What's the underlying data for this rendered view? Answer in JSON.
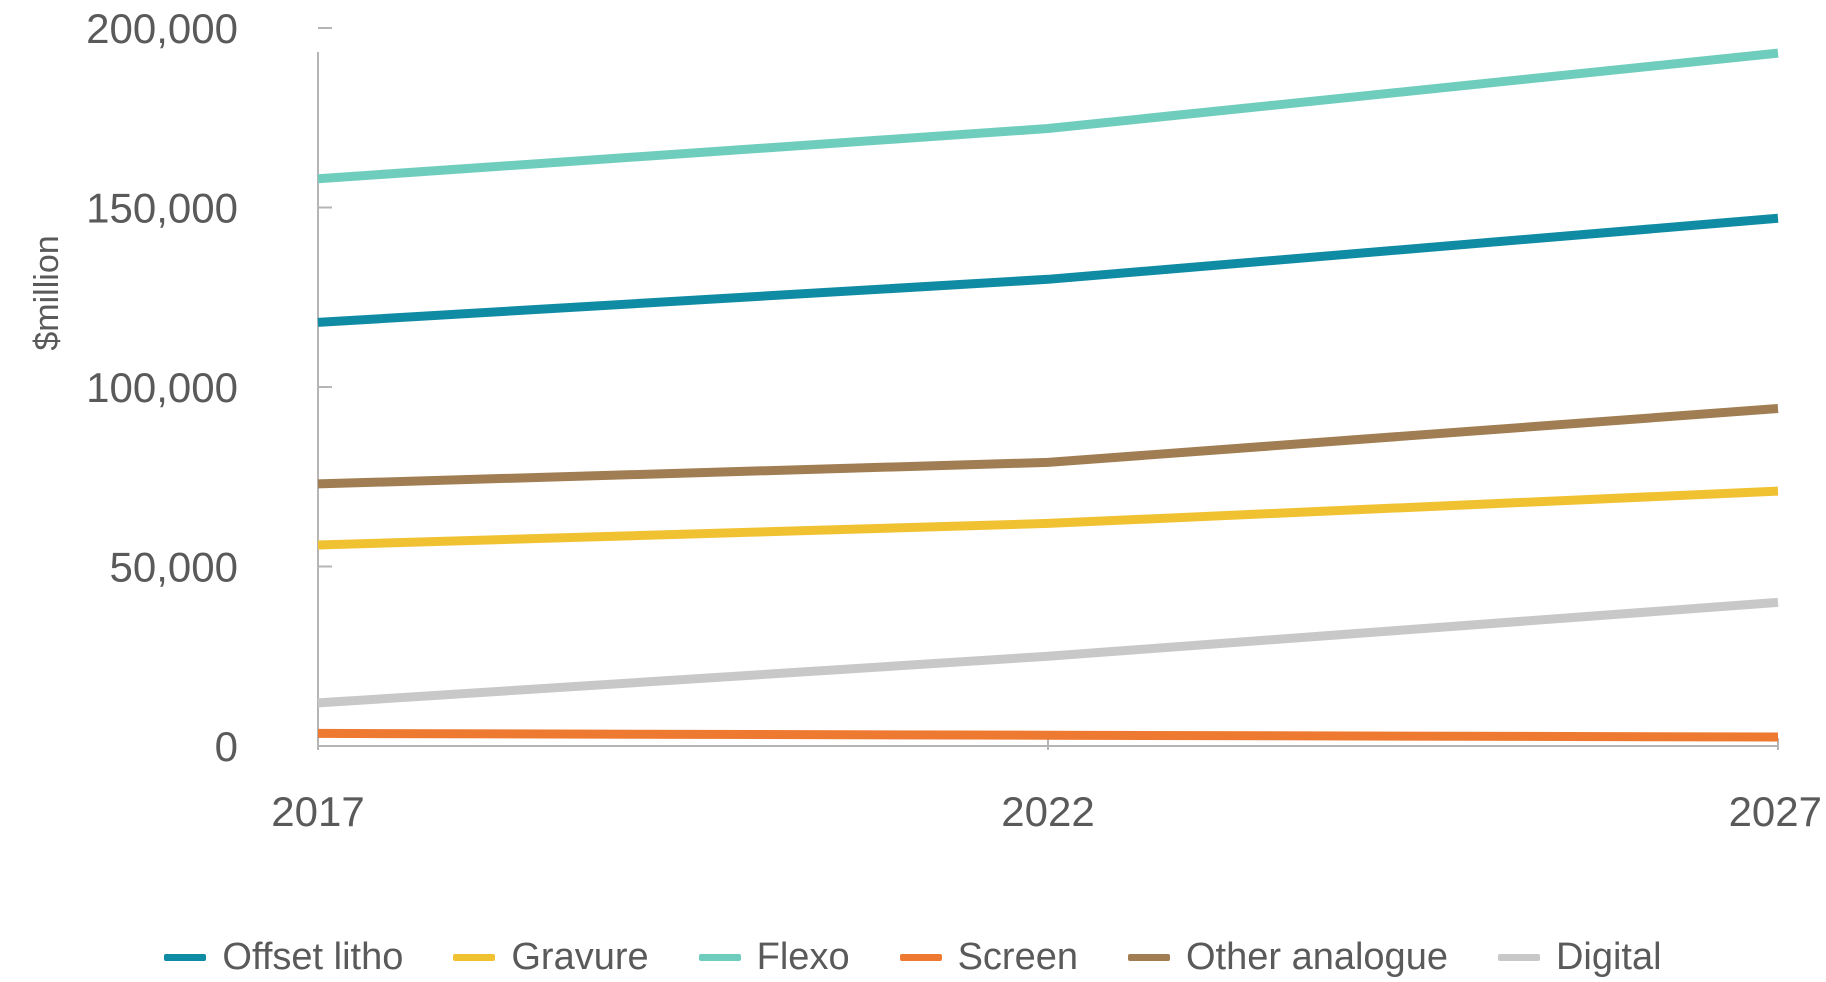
{
  "chart_data": {
    "type": "line",
    "title": "",
    "xlabel": "",
    "ylabel": "$million",
    "x": [
      "2017",
      "2022",
      "2027"
    ],
    "ylim": [
      0,
      200000
    ],
    "yticks": [
      0,
      50000,
      100000,
      150000,
      200000
    ],
    "ytick_labels": [
      "0",
      "50,000",
      "100,000",
      "150,000",
      "200,000"
    ],
    "grid": false,
    "legend_position": "bottom",
    "series": [
      {
        "name": "Offset litho",
        "color": "#0f8ba3",
        "values": [
          118000,
          130000,
          147000
        ]
      },
      {
        "name": "Gravure",
        "color": "#f0c232",
        "values": [
          56000,
          62000,
          71000
        ]
      },
      {
        "name": "Flexo",
        "color": "#6fcdbd",
        "values": [
          158000,
          172000,
          193000
        ]
      },
      {
        "name": "Screen",
        "color": "#ee7a32",
        "values": [
          3500,
          3000,
          2500
        ]
      },
      {
        "name": "Other analogue",
        "color": "#a07d52",
        "values": [
          73000,
          79000,
          94000
        ]
      },
      {
        "name": "Digital",
        "color": "#c8c8c8",
        "values": [
          12000,
          25000,
          40000
        ]
      }
    ]
  }
}
